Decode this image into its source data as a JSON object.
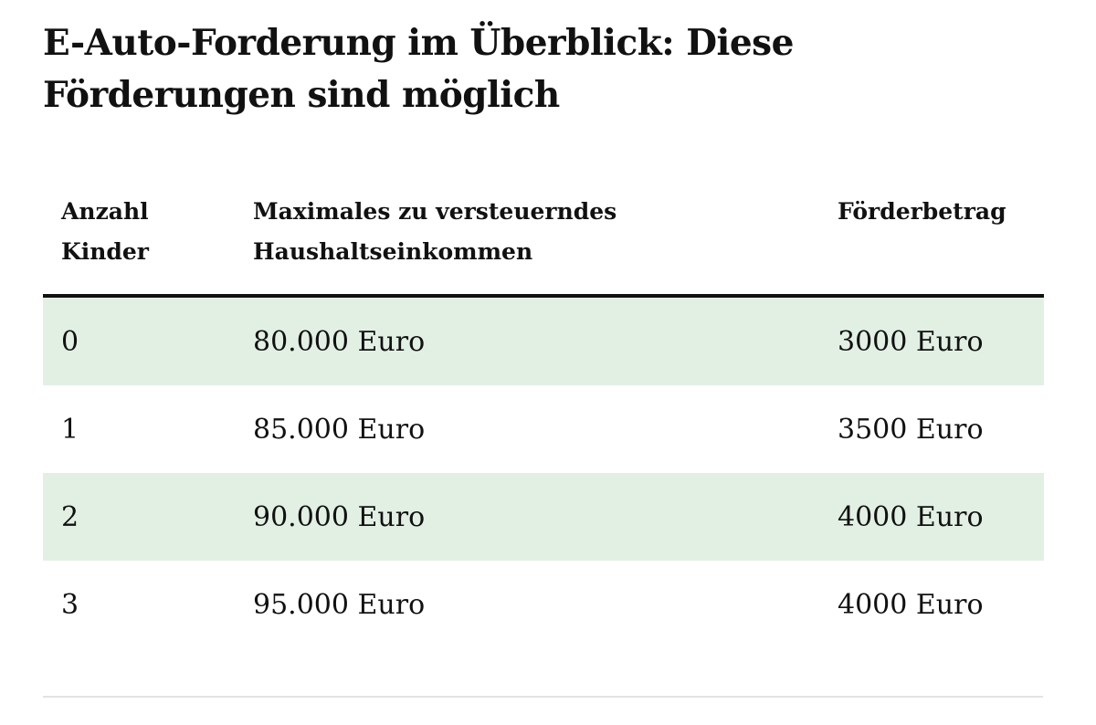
{
  "page": {
    "title": "E-Auto-Forderung im Überblick: Diese\nFörderungen sind möglich"
  },
  "table": {
    "columns": [
      {
        "label": "Anzahl\nKinder"
      },
      {
        "label": "Maximales zu versteuerndes\nHaushaltseinkommen"
      },
      {
        "label": "Förderbetrag"
      }
    ],
    "rows": [
      [
        "0",
        "80.000 Euro",
        "3000 Euro"
      ],
      [
        "1",
        "85.000 Euro",
        "3500 Euro"
      ],
      [
        "2",
        "90.000 Euro",
        "4000 Euro"
      ],
      [
        "3",
        "95.000 Euro",
        "4000 Euro"
      ]
    ]
  },
  "colors": {
    "row_stripe": "#e2f0e4",
    "header_rule": "#111111",
    "divider": "#e3e3e3",
    "text": "#111111",
    "background": "#ffffff"
  }
}
